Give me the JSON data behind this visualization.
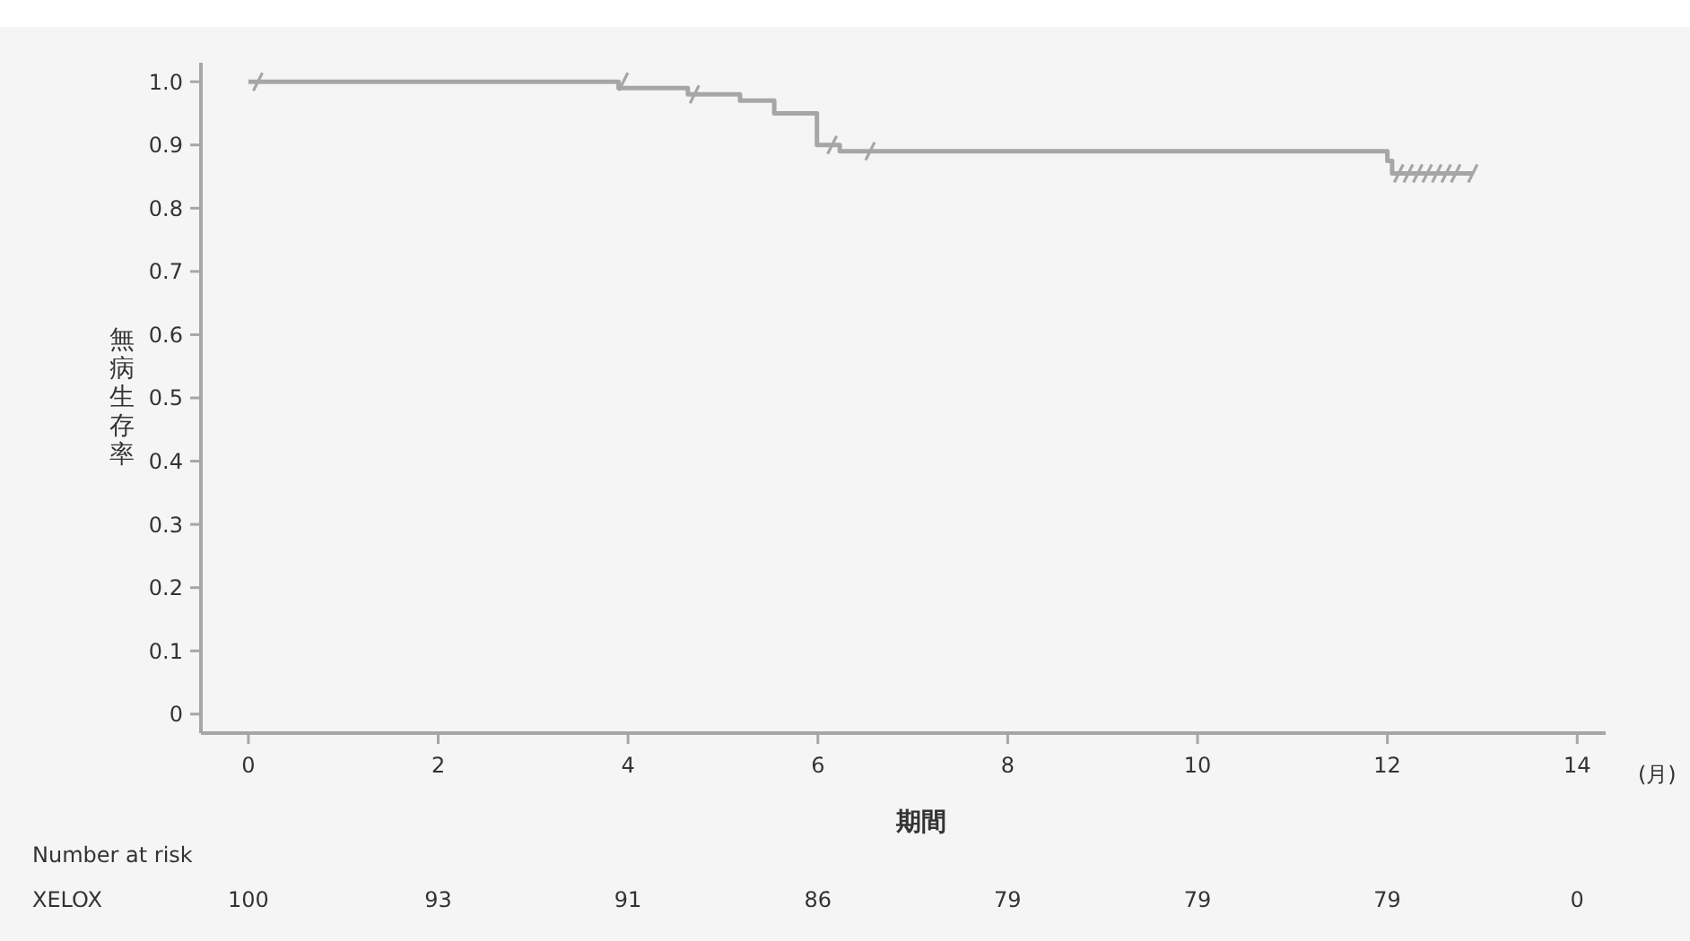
{
  "chart_data": {
    "type": "step",
    "xlabel": "期間",
    "ylabel": "無病生存率",
    "xlim": [
      -0.5,
      14.3
    ],
    "xticks": [
      0,
      2,
      4,
      6,
      8,
      10,
      12,
      14
    ],
    "ylim": [
      -0.03,
      1.03
    ],
    "yticks": [
      0,
      0.1,
      0.2,
      0.3,
      0.4,
      0.5,
      0.6,
      0.7,
      0.8,
      0.9,
      {
        "value": 1,
        "label": "1.0"
      }
    ],
    "grid": false,
    "series": [
      {
        "color": "#a6a6a6",
        "x": [
          0,
          3.9,
          4.63,
          5.18,
          5.54,
          5.99,
          6.23,
          12.0,
          12.05,
          12.9
        ],
        "values": [
          1.0,
          0.99,
          0.98,
          0.97,
          0.95,
          0.9,
          0.89,
          0.875,
          0.855,
          0.855
        ]
      },
      {
        "type": "scatter",
        "color": "#a6a6a6",
        "x": [
          0.1,
          3.95,
          4.7,
          6.15,
          6.55,
          12.12,
          12.22,
          12.32,
          12.42,
          12.52,
          12.62,
          12.72,
          12.9
        ],
        "values": [
          1.0,
          1.0,
          0.98,
          0.9,
          0.89,
          0.855,
          0.855,
          0.855,
          0.855,
          0.855,
          0.855,
          0.855,
          0.855
        ]
      }
    ],
    "annotations": [
      "(月)",
      "Number at risk",
      "XELOX",
      "100",
      "93",
      "91",
      "86",
      "79",
      "79",
      "79",
      "0"
    ]
  }
}
